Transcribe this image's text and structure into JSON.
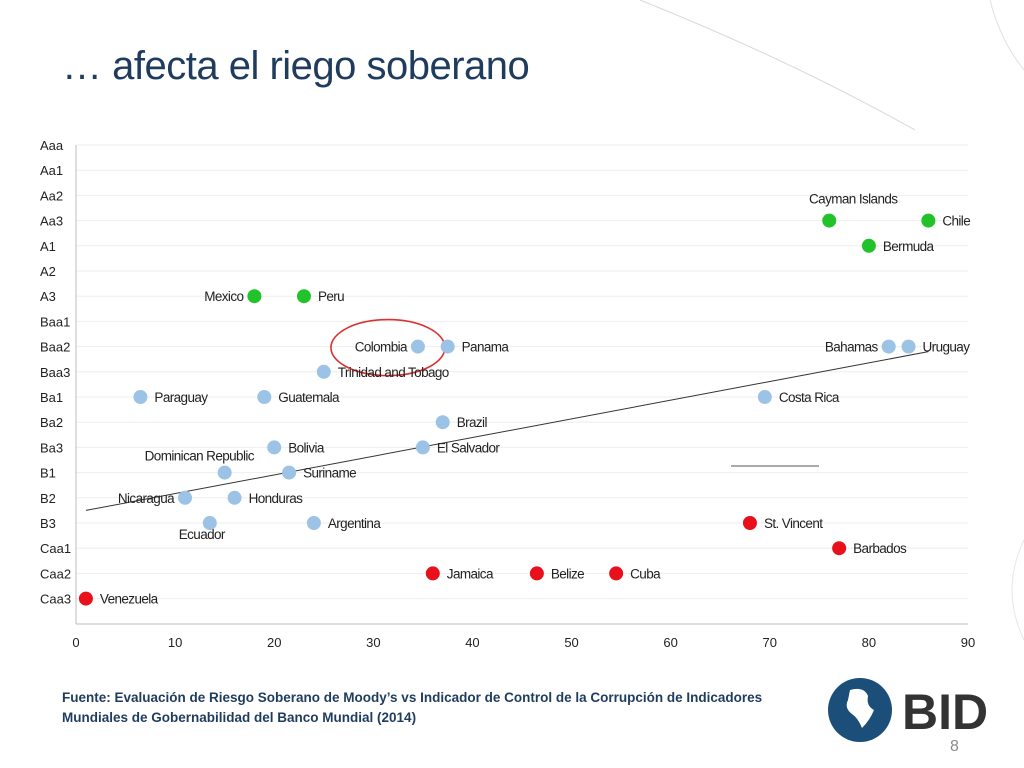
{
  "slide": {
    "title": "… afecta el riego soberano",
    "source": "Fuente: Evaluación de Riesgo Soberano de Moody’s vs  Indicador de Control de la Corrupción de Indicadores Mundiales de Gobernabilidad del Banco Mundial (2014)",
    "page_number": "8",
    "logo_text": "BID",
    "colors": {
      "title": "#1f3c5e",
      "green": "#22c22a",
      "blue": "#9cc3e6",
      "red": "#e8101a",
      "circle": "#d9322e"
    }
  },
  "chart_data": {
    "type": "scatter",
    "title": "",
    "xlabel": "",
    "ylabel": "",
    "xlim": [
      0,
      90
    ],
    "x_ticks": [
      0,
      10,
      20,
      30,
      40,
      50,
      60,
      70,
      80,
      90
    ],
    "y_categories": [
      "Aaa",
      "Aa1",
      "Aa2",
      "Aa3",
      "A1",
      "A2",
      "A3",
      "Baa1",
      "Baa2",
      "Baa3",
      "Ba1",
      "Ba2",
      "Ba3",
      "B1",
      "B2",
      "B3",
      "Caa1",
      "Caa2",
      "Caa3"
    ],
    "grid": true,
    "points": [
      {
        "name": "Chile",
        "x": 86,
        "y": "Aa3",
        "group": "green",
        "label_side": "right"
      },
      {
        "name": "Cayman Islands",
        "x": 76,
        "y": "Aa3",
        "group": "green",
        "label_side": "above"
      },
      {
        "name": "Bermuda",
        "x": 80,
        "y": "A1",
        "group": "green",
        "label_side": "right"
      },
      {
        "name": "Mexico",
        "x": 18,
        "y": "A3",
        "group": "green",
        "label_side": "left"
      },
      {
        "name": "Peru",
        "x": 23,
        "y": "A3",
        "group": "green",
        "label_side": "right"
      },
      {
        "name": "Colombia",
        "x": 34.5,
        "y": "Baa2",
        "group": "blue",
        "label_side": "left"
      },
      {
        "name": "Panama",
        "x": 37.5,
        "y": "Baa2",
        "group": "blue",
        "label_side": "right"
      },
      {
        "name": "Bahamas",
        "x": 82,
        "y": "Baa2",
        "group": "blue",
        "label_side": "left"
      },
      {
        "name": "Uruguay",
        "x": 84,
        "y": "Baa2",
        "group": "blue",
        "label_side": "right"
      },
      {
        "name": "Trinidad and Tobago",
        "x": 25,
        "y": "Baa3",
        "group": "blue",
        "label_side": "right"
      },
      {
        "name": "Paraguay",
        "x": 6.5,
        "y": "Ba1",
        "group": "blue",
        "label_side": "right"
      },
      {
        "name": "Guatemala",
        "x": 19,
        "y": "Ba1",
        "group": "blue",
        "label_side": "right"
      },
      {
        "name": "Costa Rica",
        "x": 69.5,
        "y": "Ba1",
        "group": "blue",
        "label_side": "right"
      },
      {
        "name": "Brazil",
        "x": 37,
        "y": "Ba2",
        "group": "blue",
        "label_side": "right"
      },
      {
        "name": "Bolivia",
        "x": 20,
        "y": "Ba3",
        "group": "blue",
        "label_side": "right"
      },
      {
        "name": "El Salvador",
        "x": 35,
        "y": "Ba3",
        "group": "blue",
        "label_side": "right"
      },
      {
        "name": "Dominican Republic",
        "x": 15,
        "y": "B1",
        "group": "blue",
        "label_side": "above-left"
      },
      {
        "name": "Suriname",
        "x": 21.5,
        "y": "B1",
        "group": "blue",
        "label_side": "right"
      },
      {
        "name": "Nicaragua",
        "x": 11,
        "y": "B2",
        "group": "blue",
        "label_side": "left"
      },
      {
        "name": "Honduras",
        "x": 16,
        "y": "B2",
        "group": "blue",
        "label_side": "right"
      },
      {
        "name": "Ecuador",
        "x": 13.5,
        "y": "B3",
        "group": "blue",
        "label_side": "below"
      },
      {
        "name": "Argentina",
        "x": 24,
        "y": "B3",
        "group": "blue",
        "label_side": "right"
      },
      {
        "name": "St. Vincent",
        "x": 68,
        "y": "B3",
        "group": "red",
        "label_side": "right"
      },
      {
        "name": "Barbados",
        "x": 77,
        "y": "Caa1",
        "group": "red",
        "label_side": "right"
      },
      {
        "name": "Jamaica",
        "x": 36,
        "y": "Caa2",
        "group": "red",
        "label_side": "right"
      },
      {
        "name": "Belize",
        "x": 46.5,
        "y": "Caa2",
        "group": "red",
        "label_side": "right"
      },
      {
        "name": "Cuba",
        "x": 54.5,
        "y": "Caa2",
        "group": "red",
        "label_side": "right"
      },
      {
        "name": "Venezuela",
        "x": 1,
        "y": "Caa3",
        "group": "red",
        "label_side": "right"
      }
    ],
    "trendline": {
      "start": [
        1,
        14.5
      ],
      "end": [
        86,
        8.2
      ]
    },
    "highlight": "Colombia"
  }
}
